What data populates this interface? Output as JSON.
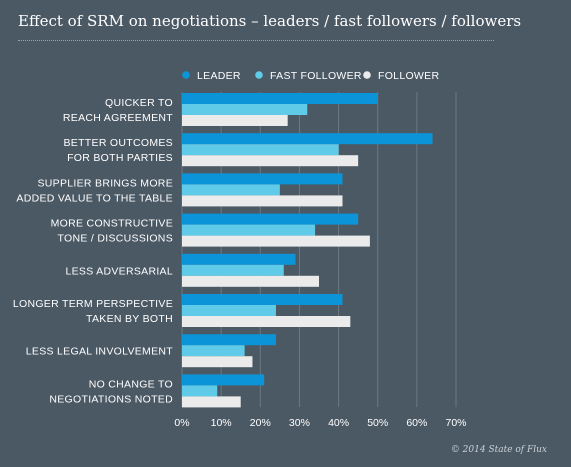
{
  "title": "Effect of SRM on negotiations – leaders / fast followers / followers",
  "copyright": "© 2014 State of Flux",
  "colors": {
    "background": "#4b5965",
    "LEADER": "#0b95d8",
    "FAST FOLLOWER": "#5fcbe8",
    "FOLLOWER": "#ebebeb"
  },
  "chart_data": {
    "type": "bar",
    "orientation": "horizontal",
    "title": "Effect of SRM on negotiations – leaders / fast followers / followers",
    "xlabel": "",
    "ylabel": "",
    "xlim": [
      0,
      70
    ],
    "x_ticks": [
      "0%",
      "10%",
      "20%",
      "30%",
      "40%",
      "50%",
      "60%",
      "70%"
    ],
    "legend_position": "top-right",
    "grid": true,
    "categories": [
      [
        "QUICKER TO",
        "REACH AGREEMENT"
      ],
      [
        "BETTER OUTCOMES",
        "FOR BOTH PARTIES"
      ],
      [
        "SUPPLIER BRINGS MORE",
        "ADDED VALUE TO THE TABLE"
      ],
      [
        "MORE CONSTRUCTIVE",
        "TONE / DISCUSSIONS"
      ],
      [
        "LESS ADVERSARIAL"
      ],
      [
        "LONGER TERM PERSPECTIVE",
        "TAKEN BY BOTH"
      ],
      [
        "LESS LEGAL INVOLVEMENT"
      ],
      [
        "NO CHANGE TO",
        "NEGOTIATIONS NOTED"
      ]
    ],
    "series": [
      {
        "name": "LEADER",
        "values": [
          50,
          64,
          41,
          45,
          29,
          41,
          24,
          21
        ]
      },
      {
        "name": "FAST FOLLOWER",
        "values": [
          32,
          40,
          25,
          34,
          26,
          24,
          16,
          9
        ]
      },
      {
        "name": "FOLLOWER",
        "values": [
          27,
          45,
          41,
          48,
          35,
          43,
          18,
          15
        ]
      }
    ]
  }
}
